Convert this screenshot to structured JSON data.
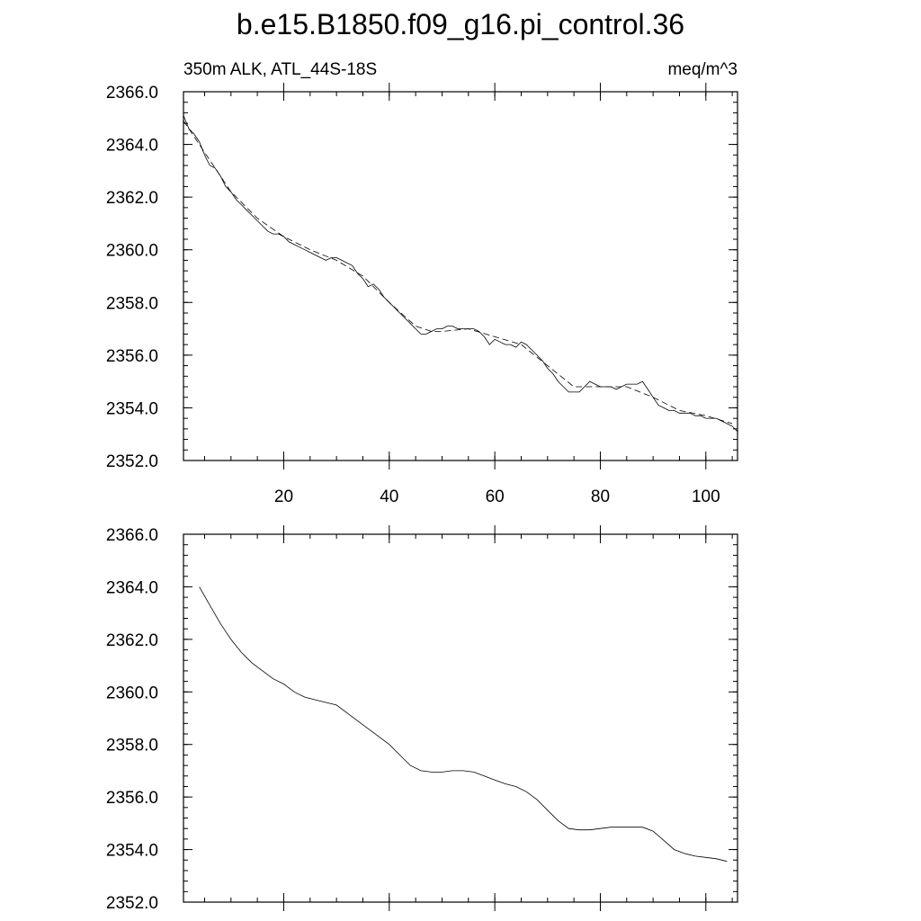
{
  "title": "b.e15.B1850.f09_g16.pi_control.36",
  "chart_data": [
    {
      "type": "line",
      "left_label": "350m ALK, ATL_44S-18S",
      "right_label": "meq/m^3",
      "xlim": [
        1,
        106
      ],
      "ylim": [
        2352.0,
        2366.0
      ],
      "x_ticks": [
        20,
        40,
        60,
        80,
        100
      ],
      "y_ticks": [
        "2352.0",
        "2354.0",
        "2356.0",
        "2358.0",
        "2360.0",
        "2362.0",
        "2364.0",
        "2366.0"
      ],
      "series": [
        {
          "style": "solid",
          "x": [
            1,
            2,
            3,
            4,
            5,
            6,
            7,
            8,
            9,
            10,
            11,
            12,
            13,
            14,
            15,
            16,
            17,
            18,
            19,
            20,
            21,
            22,
            23,
            24,
            25,
            26,
            27,
            28,
            29,
            30,
            31,
            32,
            33,
            34,
            35,
            36,
            37,
            38,
            39,
            40,
            41,
            42,
            43,
            44,
            45,
            46,
            47,
            48,
            49,
            50,
            51,
            52,
            53,
            54,
            55,
            56,
            57,
            58,
            59,
            60,
            61,
            62,
            63,
            64,
            65,
            66,
            67,
            68,
            69,
            70,
            71,
            72,
            73,
            74,
            75,
            76,
            77,
            78,
            79,
            80,
            81,
            82,
            83,
            84,
            85,
            86,
            87,
            88,
            89,
            90,
            91,
            92,
            93,
            94,
            95,
            96,
            97,
            98,
            99,
            100,
            101,
            102,
            103,
            104,
            105,
            106
          ],
          "y": [
            2365.1,
            2364.6,
            2364.4,
            2364.1,
            2363.6,
            2363.2,
            2363.1,
            2362.8,
            2362.4,
            2362.2,
            2361.9,
            2361.7,
            2361.5,
            2361.3,
            2361.1,
            2360.9,
            2360.7,
            2360.6,
            2360.6,
            2360.5,
            2360.3,
            2360.2,
            2360.1,
            2360.0,
            2359.9,
            2359.8,
            2359.7,
            2359.6,
            2359.7,
            2359.7,
            2359.6,
            2359.5,
            2359.4,
            2359.1,
            2358.9,
            2358.6,
            2358.7,
            2358.5,
            2358.2,
            2358.0,
            2357.8,
            2357.6,
            2357.4,
            2357.2,
            2357.0,
            2356.8,
            2356.8,
            2356.9,
            2357.0,
            2357.0,
            2357.1,
            2357.1,
            2357.0,
            2357.0,
            2357.0,
            2357.0,
            2356.9,
            2356.7,
            2356.4,
            2356.6,
            2356.5,
            2356.4,
            2356.4,
            2356.3,
            2356.5,
            2356.4,
            2356.2,
            2356.0,
            2355.8,
            2355.5,
            2355.3,
            2355.0,
            2354.8,
            2354.6,
            2354.6,
            2354.6,
            2354.8,
            2355.0,
            2354.9,
            2354.8,
            2354.8,
            2354.8,
            2354.7,
            2354.8,
            2354.9,
            2354.9,
            2354.9,
            2355.0,
            2354.7,
            2354.4,
            2354.1,
            2354.0,
            2353.9,
            2353.9,
            2353.8,
            2353.8,
            2353.8,
            2353.7,
            2353.7,
            2353.6,
            2353.6,
            2353.6,
            2353.5,
            2353.4,
            2353.3,
            2353.1
          ]
        },
        {
          "style": "dashed",
          "x": [
            1,
            5,
            10,
            15,
            20,
            25,
            30,
            35,
            40,
            45,
            48,
            50,
            55,
            60,
            65,
            70,
            75,
            80,
            85,
            90,
            95,
            100,
            105
          ],
          "y": [
            2364.9,
            2363.7,
            2362.2,
            2361.2,
            2360.5,
            2360.0,
            2359.6,
            2359.0,
            2358.0,
            2357.1,
            2356.9,
            2356.9,
            2357.0,
            2356.7,
            2356.4,
            2355.6,
            2354.8,
            2354.8,
            2354.8,
            2354.4,
            2353.9,
            2353.7,
            2353.4
          ]
        }
      ]
    },
    {
      "type": "line",
      "xlim": [
        1,
        106
      ],
      "ylim": [
        2352.0,
        2366.0
      ],
      "x_ticks": [
        20,
        40,
        60,
        80,
        100
      ],
      "y_ticks": [
        "2352.0",
        "2354.0",
        "2356.0",
        "2358.0",
        "2360.0",
        "2362.0",
        "2364.0",
        "2366.0"
      ],
      "series": [
        {
          "style": "solid",
          "x": [
            4,
            6,
            8,
            10,
            12,
            14,
            16,
            18,
            20,
            22,
            24,
            26,
            28,
            30,
            32,
            34,
            36,
            38,
            40,
            42,
            44,
            46,
            48,
            50,
            52,
            54,
            56,
            58,
            60,
            62,
            64,
            66,
            68,
            70,
            72,
            74,
            76,
            78,
            80,
            82,
            84,
            86,
            88,
            90,
            92,
            94,
            96,
            98,
            100,
            102,
            104
          ],
          "y": [
            2364.0,
            2363.3,
            2362.6,
            2362.0,
            2361.5,
            2361.1,
            2360.8,
            2360.5,
            2360.3,
            2360.0,
            2359.8,
            2359.7,
            2359.6,
            2359.5,
            2359.2,
            2358.9,
            2358.6,
            2358.3,
            2358.0,
            2357.6,
            2357.2,
            2357.0,
            2356.95,
            2356.95,
            2357.0,
            2357.0,
            2356.95,
            2356.8,
            2356.65,
            2356.5,
            2356.4,
            2356.2,
            2355.9,
            2355.5,
            2355.1,
            2354.8,
            2354.75,
            2354.75,
            2354.8,
            2354.85,
            2354.85,
            2354.85,
            2354.85,
            2354.7,
            2354.35,
            2354.0,
            2353.85,
            2353.75,
            2353.7,
            2353.65,
            2353.55
          ]
        }
      ]
    }
  ]
}
